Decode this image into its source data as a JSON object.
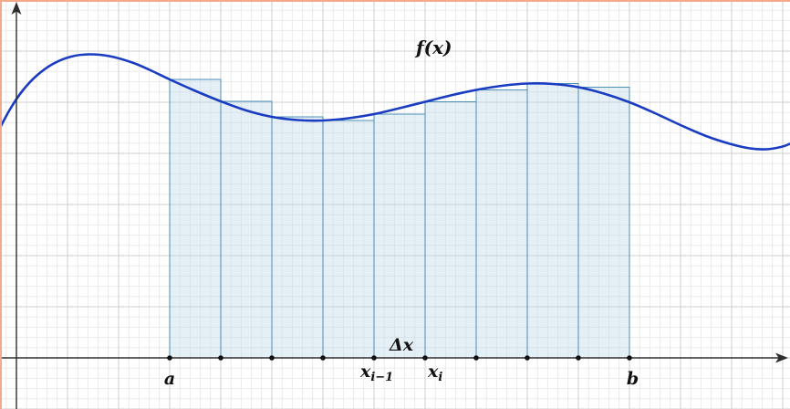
{
  "figure": {
    "function_label": "f(x)",
    "interval_start_label": "a",
    "interval_end_label": "b",
    "delta_label": "Δx",
    "partition_prev": {
      "base": "x",
      "sub": "i−1"
    },
    "partition_curr": {
      "base": "x",
      "sub": "i"
    }
  },
  "colors": {
    "curve": "#1a3cc2",
    "rectangle_fill": "#b5d0e6",
    "rectangle_stroke": "#4b8fb5",
    "axis": "#2e2e2e",
    "point": "#111111",
    "grid_major": "#cfcfcf",
    "grid_minor": "#ebebeb",
    "frame": "#f3a98a",
    "background": "#ffffff"
  }
}
